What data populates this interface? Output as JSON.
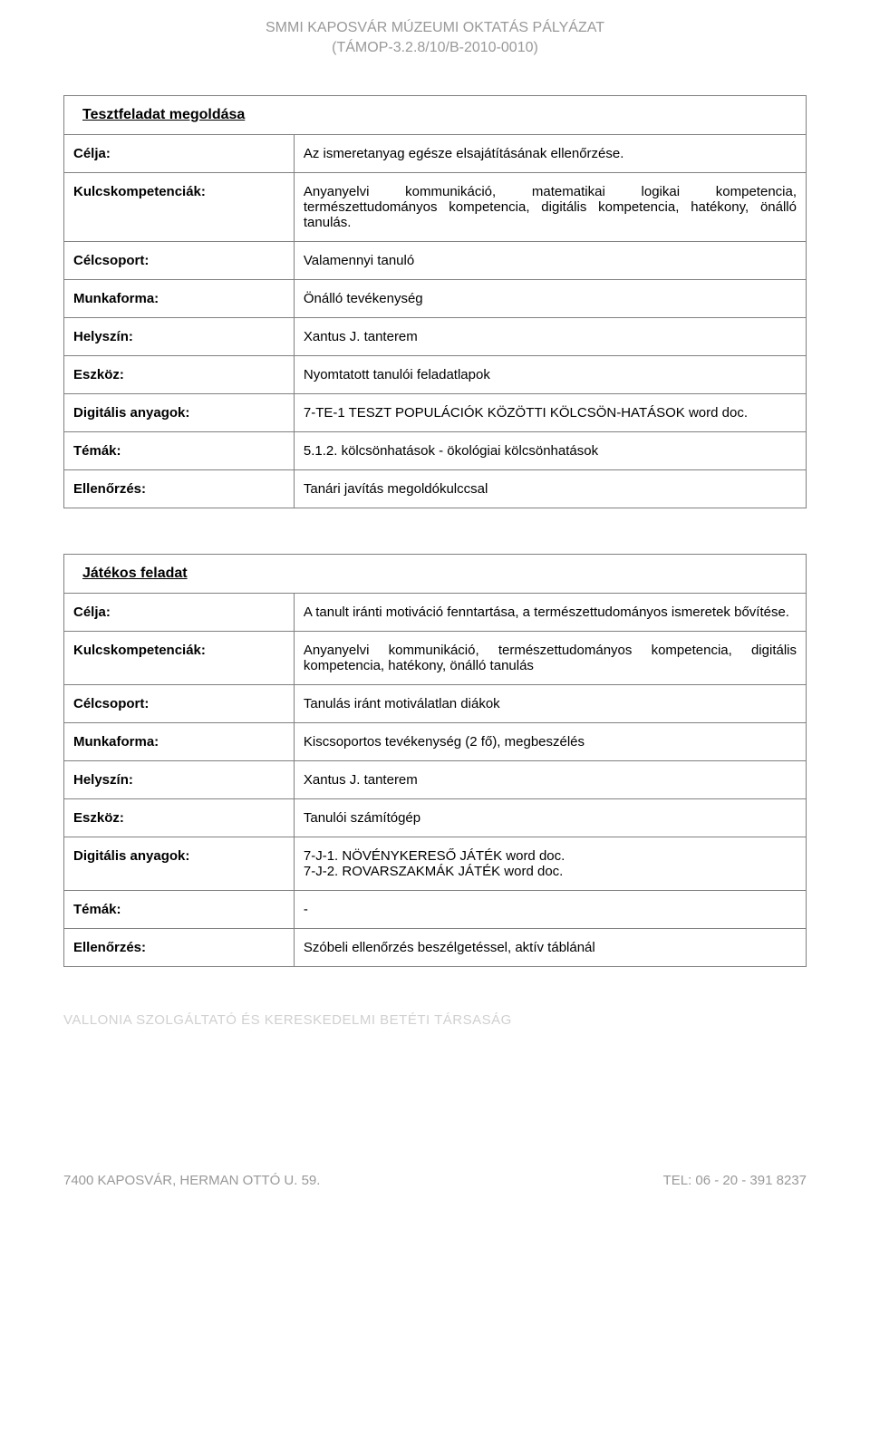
{
  "header": {
    "line1": "SMMI KAPOSVÁR MÚZEUMI OKTATÁS PÁLYÁZAT",
    "line2": "(TÁMOP-3.2.8/10/B-2010-0010)"
  },
  "tables": [
    {
      "title": "Tesztfeladat megoldása",
      "rows": [
        {
          "label": "Célja:",
          "value": "Az ismeretanyag egésze elsajátításának ellenőrzése.",
          "justified": false
        },
        {
          "label": "Kulcskompetenciák:",
          "value": "Anyanyelvi kommunikáció, matematikai logikai kompetencia, természettudományos kompetencia, digitális kompetencia, hatékony, önálló tanulás.",
          "justified": true
        },
        {
          "label": "Célcsoport:",
          "value": "Valamennyi tanuló",
          "justified": false
        },
        {
          "label": "Munkaforma:",
          "value": "Önálló tevékenység",
          "justified": false
        },
        {
          "label": "Helyszín:",
          "value": "Xantus J. tanterem",
          "justified": false
        },
        {
          "label": "Eszköz:",
          "value": "Nyomtatott tanulói feladatlapok",
          "justified": false
        },
        {
          "label": "Digitális anyagok:",
          "value": "7-TE-1 TESZT POPULÁCIÓK KÖZÖTTI KÖLCSÖN-HATÁSOK word doc.",
          "justified": false
        },
        {
          "label": "Témák:",
          "value": "5.1.2. kölcsönhatások - ökológiai kölcsönhatások",
          "justified": false
        },
        {
          "label": "Ellenőrzés:",
          "value": "Tanári javítás megoldókulccsal",
          "justified": false
        }
      ]
    },
    {
      "title": "Játékos feladat",
      "rows": [
        {
          "label": "Célja:",
          "value": "A tanult iránti motiváció fenntartása, a természettudományos ismeretek bővítése.",
          "justified": true
        },
        {
          "label": "Kulcskompetenciák:",
          "value": "Anyanyelvi kommunikáció, természettudományos kompetencia, digitális kompetencia, hatékony, önálló tanulás",
          "justified": true
        },
        {
          "label": "Célcsoport:",
          "value": "Tanulás iránt motiválatlan diákok",
          "justified": false
        },
        {
          "label": "Munkaforma:",
          "value": "Kiscsoportos tevékenység (2 fő), megbeszélés",
          "justified": false
        },
        {
          "label": "Helyszín:",
          "value": "Xantus J. tanterem",
          "justified": false
        },
        {
          "label": "Eszköz:",
          "value": "Tanulói számítógép",
          "justified": false
        },
        {
          "label": "Digitális anyagok:",
          "value": "7-J-1. NÖVÉNYKERESŐ JÁTÉK word doc.\n7-J-2. ROVARSZAKMÁK JÁTÉK word doc.",
          "justified": false
        },
        {
          "label": "Témák:",
          "value": "-",
          "justified": false
        },
        {
          "label": "Ellenőrzés:",
          "value": "Szóbeli ellenőrzés beszélgetéssel, aktív táblánál",
          "justified": false
        }
      ]
    }
  ],
  "footer": {
    "company": "VALLONIA   SZOLGÁLTATÓ ÉS KERESKEDELMI BETÉTI TÁRSASÁG",
    "left": "7400 KAPOSVÁR, HERMAN OTTÓ U. 59.",
    "right": "TEL: 06 - 20 - 391 8237"
  },
  "colors": {
    "text": "#000000",
    "border": "#808080",
    "headerText": "#999999",
    "footerText": "#999999",
    "footerCompany": "#d0d0d0",
    "background": "#ffffff"
  }
}
